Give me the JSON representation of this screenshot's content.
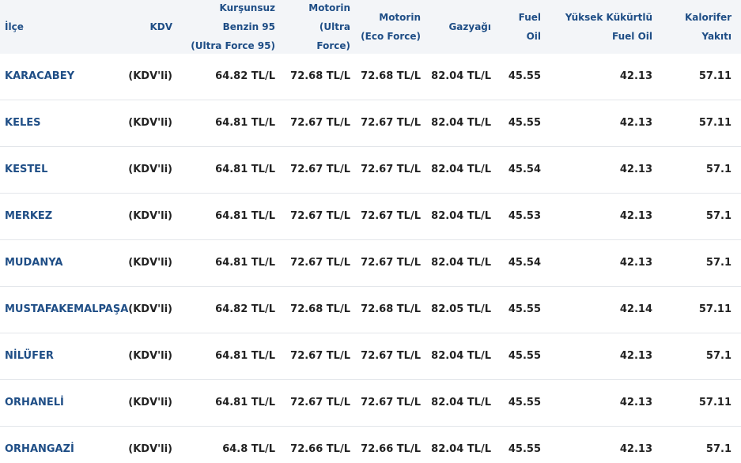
{
  "table": {
    "headers": [
      [
        "İlçe"
      ],
      [
        "KDV"
      ],
      [
        "Kurşunsuz",
        "Benzin 95",
        "(Ultra Force 95)"
      ],
      [
        "Motorin",
        "(Ultra",
        "Force)"
      ],
      [
        "Motorin",
        "(Eco Force)"
      ],
      [
        "Gazyağı"
      ],
      [
        "Fuel",
        "Oil"
      ],
      [
        "Yüksek Kükürtlü",
        "Fuel Oil"
      ],
      [
        "Kalorifer",
        "Yakıtı"
      ]
    ],
    "rows": [
      [
        "KARACABEY",
        "(KDV'li)",
        "64.82 TL/L",
        "72.68 TL/L",
        "72.68 TL/L",
        "82.04 TL/L",
        "45.55",
        "42.13",
        "57.11"
      ],
      [
        "KELES",
        "(KDV'li)",
        "64.81 TL/L",
        "72.67 TL/L",
        "72.67 TL/L",
        "82.04 TL/L",
        "45.55",
        "42.13",
        "57.11"
      ],
      [
        "KESTEL",
        "(KDV'li)",
        "64.81 TL/L",
        "72.67 TL/L",
        "72.67 TL/L",
        "82.04 TL/L",
        "45.54",
        "42.13",
        "57.1"
      ],
      [
        "MERKEZ",
        "(KDV'li)",
        "64.81 TL/L",
        "72.67 TL/L",
        "72.67 TL/L",
        "82.04 TL/L",
        "45.53",
        "42.13",
        "57.1"
      ],
      [
        "MUDANYA",
        "(KDV'li)",
        "64.81 TL/L",
        "72.67 TL/L",
        "72.67 TL/L",
        "82.04 TL/L",
        "45.54",
        "42.13",
        "57.1"
      ],
      [
        "MUSTAFAKEMALPAŞA",
        "(KDV'li)",
        "64.82 TL/L",
        "72.68 TL/L",
        "72.68 TL/L",
        "82.05 TL/L",
        "45.55",
        "42.14",
        "57.11"
      ],
      [
        "NİLÜFER",
        "(KDV'li)",
        "64.81 TL/L",
        "72.67 TL/L",
        "72.67 TL/L",
        "82.04 TL/L",
        "45.55",
        "42.13",
        "57.1"
      ],
      [
        "ORHANELİ",
        "(KDV'li)",
        "64.81 TL/L",
        "72.67 TL/L",
        "72.67 TL/L",
        "82.04 TL/L",
        "45.55",
        "42.13",
        "57.11"
      ],
      [
        "ORHANGAZİ",
        "(KDV'li)",
        "64.8 TL/L",
        "72.66 TL/L",
        "72.66 TL/L",
        "82.04 TL/L",
        "45.55",
        "42.13",
        "57.1"
      ]
    ]
  }
}
